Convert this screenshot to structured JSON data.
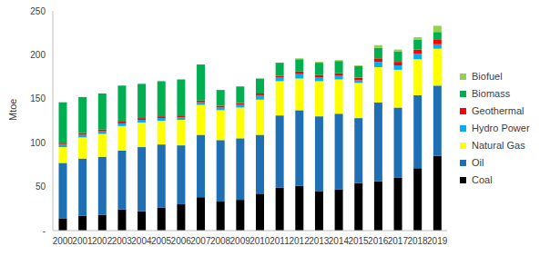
{
  "chart_data": {
    "type": "bar",
    "stacked": true,
    "y_label": "Mtoe",
    "categories": [
      "2000",
      "2001",
      "2002",
      "2003",
      "2004",
      "2005",
      "2006",
      "2007",
      "2008",
      "2009",
      "2010",
      "2011",
      "2012",
      "2013",
      "2014",
      "2015",
      "2016",
      "2017",
      "2018",
      "2019"
    ],
    "series": [
      {
        "name": "Coal",
        "color": "#000000",
        "values": [
          14,
          17,
          18,
          24,
          22,
          26,
          30,
          38,
          33,
          35,
          42,
          49,
          51,
          45,
          47,
          54,
          56,
          60,
          71,
          85
        ]
      },
      {
        "name": "Oil",
        "color": "#1F6FB5",
        "values": [
          63,
          65,
          66,
          67,
          73,
          72,
          67,
          71,
          70,
          70,
          67,
          82,
          86,
          85,
          86,
          74,
          90,
          80,
          83,
          80
        ]
      },
      {
        "name": "Natural Gas",
        "color": "#FFFF00",
        "values": [
          18,
          24,
          26,
          28,
          28,
          27,
          29,
          34,
          34,
          35,
          40,
          39,
          36,
          40,
          39,
          40,
          40,
          43,
          41,
          42
        ]
      },
      {
        "name": "Hydro Power",
        "color": "#00B0F0",
        "values": [
          3,
          3,
          3,
          3,
          3,
          3,
          3,
          3,
          3,
          3,
          5,
          4,
          5,
          4,
          4,
          3,
          6,
          5,
          6,
          5
        ]
      },
      {
        "name": "Geothermal",
        "color": "#FF0000",
        "values": [
          1,
          2,
          2,
          2,
          2,
          2,
          2,
          2,
          2,
          2,
          2,
          2,
          3,
          3,
          3,
          3,
          4,
          4,
          5,
          5
        ]
      },
      {
        "name": "Biomass",
        "color": "#00B050",
        "values": [
          47,
          41,
          41,
          41,
          39,
          40,
          41,
          41,
          18,
          19,
          17,
          15,
          14,
          14,
          14,
          13,
          12,
          12,
          11,
          9
        ]
      },
      {
        "name": "Biofuel",
        "color": "#92D050",
        "values": [
          0,
          0,
          0,
          0,
          0,
          0,
          0,
          0,
          0,
          0,
          0,
          0,
          1,
          1,
          1,
          1,
          3,
          2,
          3,
          7
        ]
      }
    ],
    "ylim": [
      0,
      250
    ],
    "yticks": [
      {
        "value": 0,
        "label": "-"
      },
      50,
      100,
      150,
      200,
      250
    ],
    "grid": false,
    "legend": "right"
  }
}
